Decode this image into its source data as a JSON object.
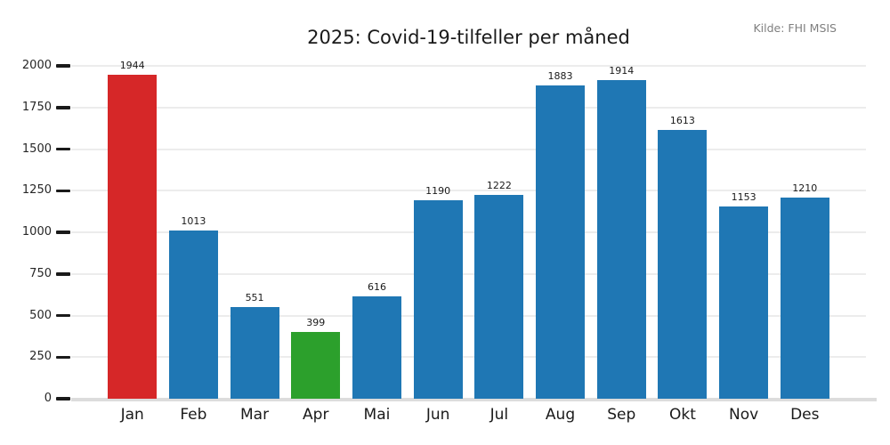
{
  "header": {
    "title": "2025: Covid-19-tilfeller per måned",
    "source": "Kilde: FHI MSIS"
  },
  "chart_data": {
    "type": "bar",
    "title": "2025: Covid-19-tilfeller per måned",
    "source": "Kilde: FHI MSIS",
    "categories": [
      "Jan",
      "Feb",
      "Mar",
      "Apr",
      "Mai",
      "Jun",
      "Jul",
      "Aug",
      "Sep",
      "Okt",
      "Nov",
      "Des"
    ],
    "values": [
      1944,
      1013,
      551,
      399,
      616,
      1190,
      1222,
      1883,
      1914,
      1613,
      1153,
      1210
    ],
    "bar_colors": [
      "#d62728",
      "#1f77b4",
      "#1f77b4",
      "#2ca02c",
      "#1f77b4",
      "#1f77b4",
      "#1f77b4",
      "#1f77b4",
      "#1f77b4",
      "#1f77b4",
      "#1f77b4",
      "#1f77b4"
    ],
    "colors": {
      "default_bar": "#1f77b4",
      "max_bar_highlight": "#d62728",
      "min_bar_highlight": "#2ca02c",
      "gridline": "#ececec",
      "baseline": "#dcdcdc",
      "tick": "#1a1a1a",
      "source_text": "#7f7f7f"
    },
    "xlabel": "",
    "ylabel": "",
    "y_ticks": [
      0,
      250,
      500,
      750,
      1000,
      1250,
      1500,
      1750,
      2000
    ],
    "ylim": [
      0,
      2000
    ],
    "grid": "horizontal",
    "legend": "none",
    "value_labels": true
  }
}
